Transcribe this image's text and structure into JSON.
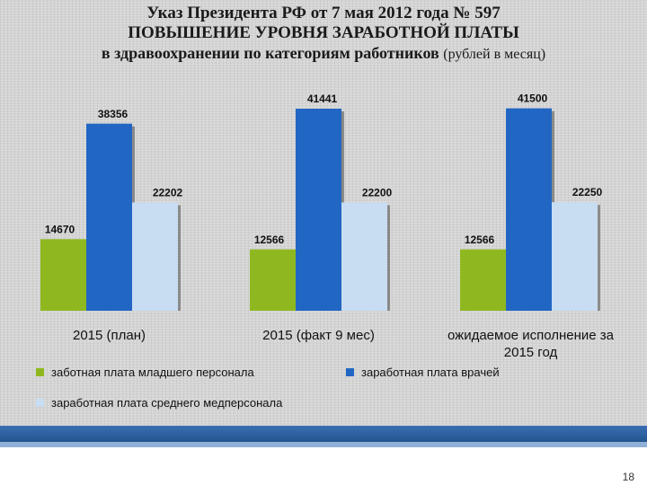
{
  "title": {
    "line1": "Указ Президента РФ от 7 мая 2012 года № 597",
    "line2": "ПОВЫШЕНИЕ УРОВНЯ ЗАРАБОТНОЙ ПЛАТЫ",
    "line3": "в здравоохранении по категориям работников",
    "unit": "(рублей в месяц)"
  },
  "chart_data": {
    "type": "bar",
    "categories": [
      "2015 (план)",
      "2015 (факт 9 мес)",
      "ожидаемое исполнение за 2015 год"
    ],
    "category_lines": [
      [
        "2015 (план)"
      ],
      [
        "2015 (факт 9 мес)"
      ],
      [
        "ожидаемое исполнение за",
        "2015 год"
      ]
    ],
    "series": [
      {
        "name": "заботная плата младшего персонала",
        "values": [
          14670,
          12566,
          12566
        ],
        "color": "#8fb820"
      },
      {
        "name": "заработная плата врачей",
        "values": [
          38356,
          41441,
          41500
        ],
        "color": "#2266c4"
      },
      {
        "name": "заработная плата среднего медперсонала",
        "values": [
          22202,
          22200,
          22250
        ],
        "color": "#c8dcf2"
      }
    ],
    "ylim": [
      0,
      42000
    ],
    "grid": false,
    "legend_position": "bottom"
  },
  "page_number": "18"
}
